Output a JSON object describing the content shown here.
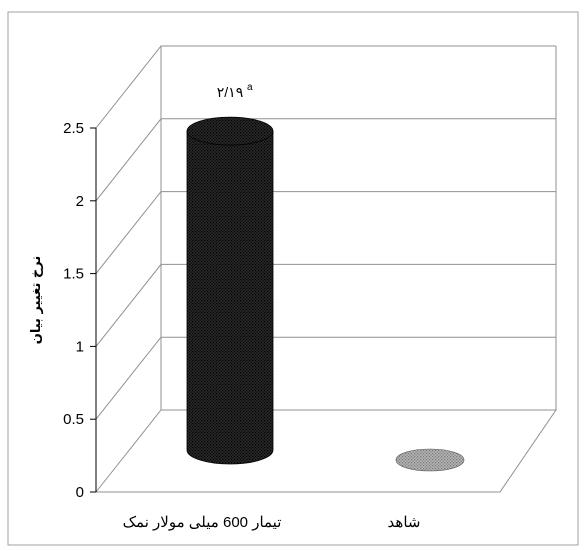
{
  "chart_data": {
    "type": "bar",
    "style": "3d-cylinder",
    "categories": [
      "تیمار 600 میلی مولار نمک",
      "شاهد"
    ],
    "values": [
      2.19,
      0.0
    ],
    "ylabel": "نرخ تغییر بیان",
    "ylim": [
      0,
      2.5
    ],
    "yticks": [
      "0",
      "0.5",
      "1",
      "1.5",
      "2",
      "2.5"
    ],
    "data_labels": [
      {
        "text": "۲/۱۹",
        "superscript": "a"
      }
    ],
    "grid": true,
    "colors": {
      "treatment_bar": "#1a1a1a",
      "control_bar": "#9a9a9a",
      "gridline": "#909090",
      "frame": "#a0a0a0"
    }
  }
}
